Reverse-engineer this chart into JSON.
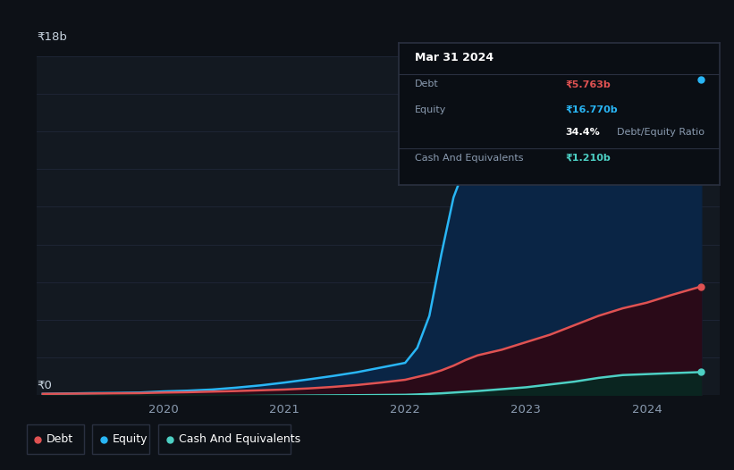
{
  "bg_color": "#0d1117",
  "plot_bg_color": "#131921",
  "grid_color": "#1e2535",
  "debt_color": "#e05252",
  "equity_color": "#29b6f6",
  "cash_color": "#4dd0c4",
  "equity_fill": "#0a2545",
  "debt_fill": "#2a0a18",
  "cash_fill": "#0a2520",
  "ylim": [
    0,
    18
  ],
  "xlim_start": 2018.95,
  "xlim_end": 2024.6,
  "time": [
    2019.0,
    2019.2,
    2019.4,
    2019.6,
    2019.8,
    2020.0,
    2020.2,
    2020.4,
    2020.6,
    2020.8,
    2021.0,
    2021.2,
    2021.4,
    2021.6,
    2021.8,
    2022.0,
    2022.1,
    2022.2,
    2022.3,
    2022.4,
    2022.5,
    2022.6,
    2022.8,
    2023.0,
    2023.2,
    2023.4,
    2023.6,
    2023.8,
    2024.0,
    2024.2,
    2024.45
  ],
  "equity": [
    0.05,
    0.07,
    0.09,
    0.1,
    0.12,
    0.18,
    0.22,
    0.28,
    0.38,
    0.5,
    0.65,
    0.82,
    1.0,
    1.2,
    1.45,
    1.7,
    2.5,
    4.2,
    7.5,
    10.5,
    12.2,
    13.2,
    13.8,
    14.2,
    14.6,
    15.1,
    15.6,
    16.0,
    16.3,
    16.6,
    16.77
  ],
  "debt": [
    0.05,
    0.06,
    0.07,
    0.08,
    0.09,
    0.12,
    0.14,
    0.17,
    0.2,
    0.24,
    0.28,
    0.34,
    0.42,
    0.52,
    0.65,
    0.8,
    0.95,
    1.1,
    1.3,
    1.55,
    1.85,
    2.1,
    2.4,
    2.8,
    3.2,
    3.7,
    4.2,
    4.6,
    4.9,
    5.3,
    5.763
  ],
  "cash": [
    -0.15,
    -0.14,
    -0.13,
    -0.12,
    -0.11,
    -0.1,
    -0.09,
    -0.08,
    -0.07,
    -0.06,
    -0.05,
    -0.04,
    -0.03,
    -0.02,
    -0.01,
    0.0,
    0.02,
    0.05,
    0.08,
    0.12,
    0.16,
    0.2,
    0.3,
    0.4,
    0.55,
    0.7,
    0.9,
    1.05,
    1.1,
    1.15,
    1.21
  ],
  "legend_items": [
    {
      "label": "Debt",
      "color": "#e05252"
    },
    {
      "label": "Equity",
      "color": "#29b6f6"
    },
    {
      "label": "Cash And Equivalents",
      "color": "#4dd0c4"
    }
  ],
  "tooltip_title": "Mar 31 2024",
  "tooltip_debt_label": "Debt",
  "tooltip_debt_value": "₹5.763b",
  "tooltip_equity_label": "Equity",
  "tooltip_equity_value": "₹16.770b",
  "tooltip_ratio_label": "Debt/Equity Ratio",
  "tooltip_ratio_value": "34.4%",
  "tooltip_cash_label": "Cash And Equivalents",
  "tooltip_cash_value": "₹1.210b"
}
